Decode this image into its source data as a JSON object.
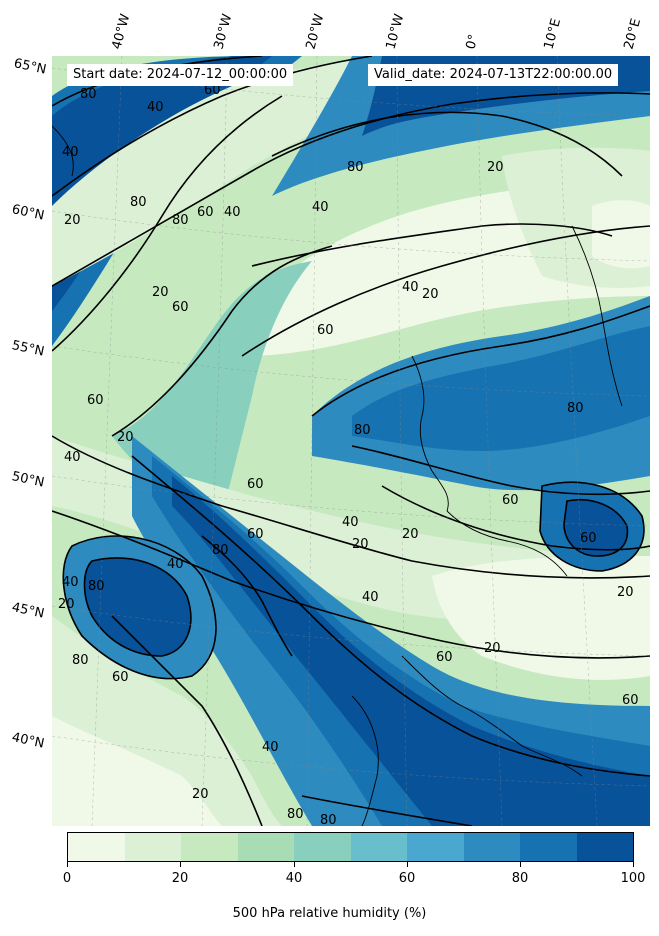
{
  "header": {
    "start_date": "Start date: 2024-07-12_00:00:00",
    "valid_date": "Valid_date: 2024-07-13T22:00:00.00"
  },
  "axes": {
    "lat_labels": [
      "65°N",
      "60°N",
      "55°N",
      "50°N",
      "45°N",
      "40°N"
    ],
    "lon_labels": [
      "40°W",
      "30°W",
      "20°W",
      "10°W",
      "0°",
      "10°E",
      "20°E"
    ]
  },
  "contour_labels": {
    "values": [
      "80",
      "40",
      "60",
      "20",
      "40",
      "80",
      "60",
      "20",
      "80",
      "40",
      "60",
      "20",
      "40",
      "60",
      "80",
      "20",
      "40",
      "60",
      "20",
      "80",
      "40",
      "60",
      "80",
      "60",
      "40",
      "20",
      "80",
      "60",
      "40",
      "20",
      "80",
      "60",
      "40",
      "20",
      "60",
      "20",
      "80",
      "40",
      "20",
      "60",
      "80",
      "40",
      "20",
      "80",
      "60"
    ]
  },
  "colorbar": {
    "title": "500 hPa relative humidity (%)",
    "tick_labels": [
      "0",
      "20",
      "40",
      "60",
      "80",
      "100"
    ],
    "colors": [
      "#f0f9e8",
      "#dcf0d6",
      "#c7e9c0",
      "#a8dcb5",
      "#88cfbd",
      "#68bfcb",
      "#4aa8d0",
      "#2e8bbf",
      "#1672b0",
      "#08529a"
    ]
  }
}
